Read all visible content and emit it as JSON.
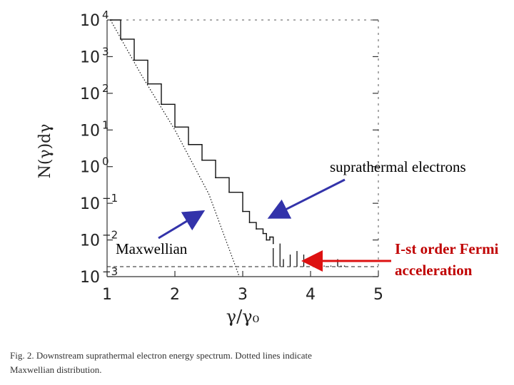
{
  "chart_data": {
    "type": "line",
    "xlabel": "γ/γ₀",
    "ylabel": "N(γ)dγ",
    "xlim": [
      1,
      5
    ],
    "ylim": [
      0.001,
      10000.0
    ],
    "yscale": "log",
    "x_ticks": [
      "1",
      "2",
      "3",
      "4",
      "5"
    ],
    "y_ticks": [
      {
        "base": "10",
        "exp": "4"
      },
      {
        "base": "10",
        "exp": "3"
      },
      {
        "base": "10",
        "exp": "2"
      },
      {
        "base": "10",
        "exp": "1"
      },
      {
        "base": "10",
        "exp": "0"
      },
      {
        "base": "10",
        "exp": "−1"
      },
      {
        "base": "10",
        "exp": "−2"
      },
      {
        "base": "10",
        "exp": "−3"
      }
    ],
    "series": [
      {
        "style": "dotted",
        "x": [
          1.05,
          1.5,
          2.0,
          2.5,
          2.95
        ],
        "y": [
          10000,
          330,
          10,
          0.18,
          0.001
        ]
      },
      {
        "style": "step",
        "x": [
          1.05,
          1.2,
          1.4,
          1.6,
          1.8,
          2.0,
          2.2,
          2.4,
          2.6,
          2.8,
          3.0,
          3.1,
          3.2,
          3.3,
          3.35,
          3.4,
          3.45
        ],
        "y": [
          10000,
          3000,
          800,
          180,
          50,
          12,
          4,
          1.5,
          0.5,
          0.2,
          0.06,
          0.03,
          0.02,
          0.015,
          0.01,
          0.012,
          0.008
        ]
      },
      {
        "style": "spikes",
        "x": [
          3.45,
          3.55,
          3.6,
          3.7,
          3.8,
          3.9,
          4.2,
          4.3,
          4.4,
          4.45,
          4.5
        ],
        "y": [
          0.006,
          0.008,
          0.003,
          0.004,
          0.005,
          0.004,
          0.002,
          0.002,
          0.003,
          0.002,
          0.002
        ]
      }
    ],
    "reference_line": {
      "style": "dashed",
      "y": 0.001
    }
  },
  "annotations": {
    "suprathermal": "suprathermal electrons",
    "maxwellian": "Maxwellian",
    "fermi_line1": "I-st order Fermi",
    "fermi_line2": "acceleration"
  },
  "caption": {
    "line1": "Fig.   2.     Downstream  suprathermal  electron  energy  spectrum.    Dotted  lines  indicate",
    "line2": "Maxwellian distribution."
  },
  "colors": {
    "arrow_blue": "#3333aa",
    "arrow_red": "#dd1111",
    "fermi_text": "#c00000",
    "line": "#111111"
  }
}
